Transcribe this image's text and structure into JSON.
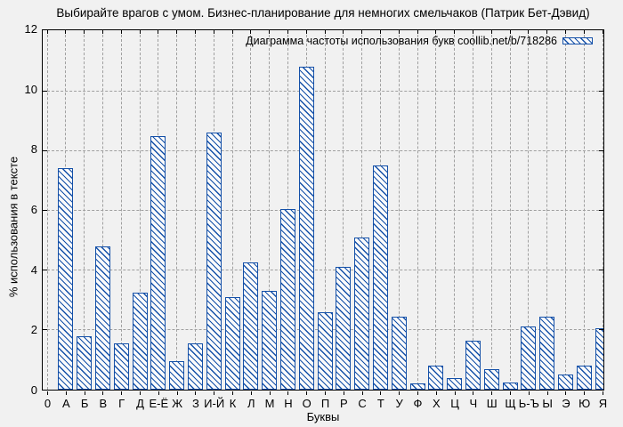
{
  "colors": {
    "background": "#f1f1f1",
    "bar_blue": "#1450a8",
    "grid_gray": "#9f9f9f",
    "axis_black": "#000000"
  },
  "axes": {
    "x_origin_label": "0",
    "y_ticks": [
      0,
      2,
      4,
      6,
      8,
      10,
      12
    ]
  },
  "chart_data": {
    "type": "bar",
    "title": "Выбирайте врагов с умом. Бизнес-планирование для немногих смельчаков (Патрик Бет-Дэвид)",
    "legend_label": "Диаграмма частоты использования букв coollib.net/b/718286",
    "xlabel": "Буквы",
    "ylabel": "% использования в тексте",
    "ylim": [
      0,
      12
    ],
    "grid": true,
    "legend_position": "top-right",
    "bar_style": "blue outline with diagonal hatch fill",
    "categories": [
      "А",
      "Б",
      "В",
      "Г",
      "Д",
      "Е-Ё",
      "Ж",
      "З",
      "И-Й",
      "К",
      "Л",
      "М",
      "Н",
      "О",
      "П",
      "Р",
      "С",
      "Т",
      "У",
      "Ф",
      "Х",
      "Ц",
      "Ч",
      "Ш",
      "Щ",
      "Ь-Ъ",
      "Ы",
      "Э",
      "Ю",
      "Я"
    ],
    "values": [
      7.4,
      1.8,
      4.8,
      1.55,
      3.25,
      8.5,
      0.95,
      1.55,
      8.6,
      3.1,
      4.25,
      3.3,
      6.05,
      10.8,
      2.6,
      4.1,
      5.1,
      7.5,
      2.45,
      0.2,
      0.8,
      0.4,
      1.65,
      0.7,
      0.25,
      2.1,
      2.45,
      0.5,
      0.8,
      2.05
    ]
  }
}
